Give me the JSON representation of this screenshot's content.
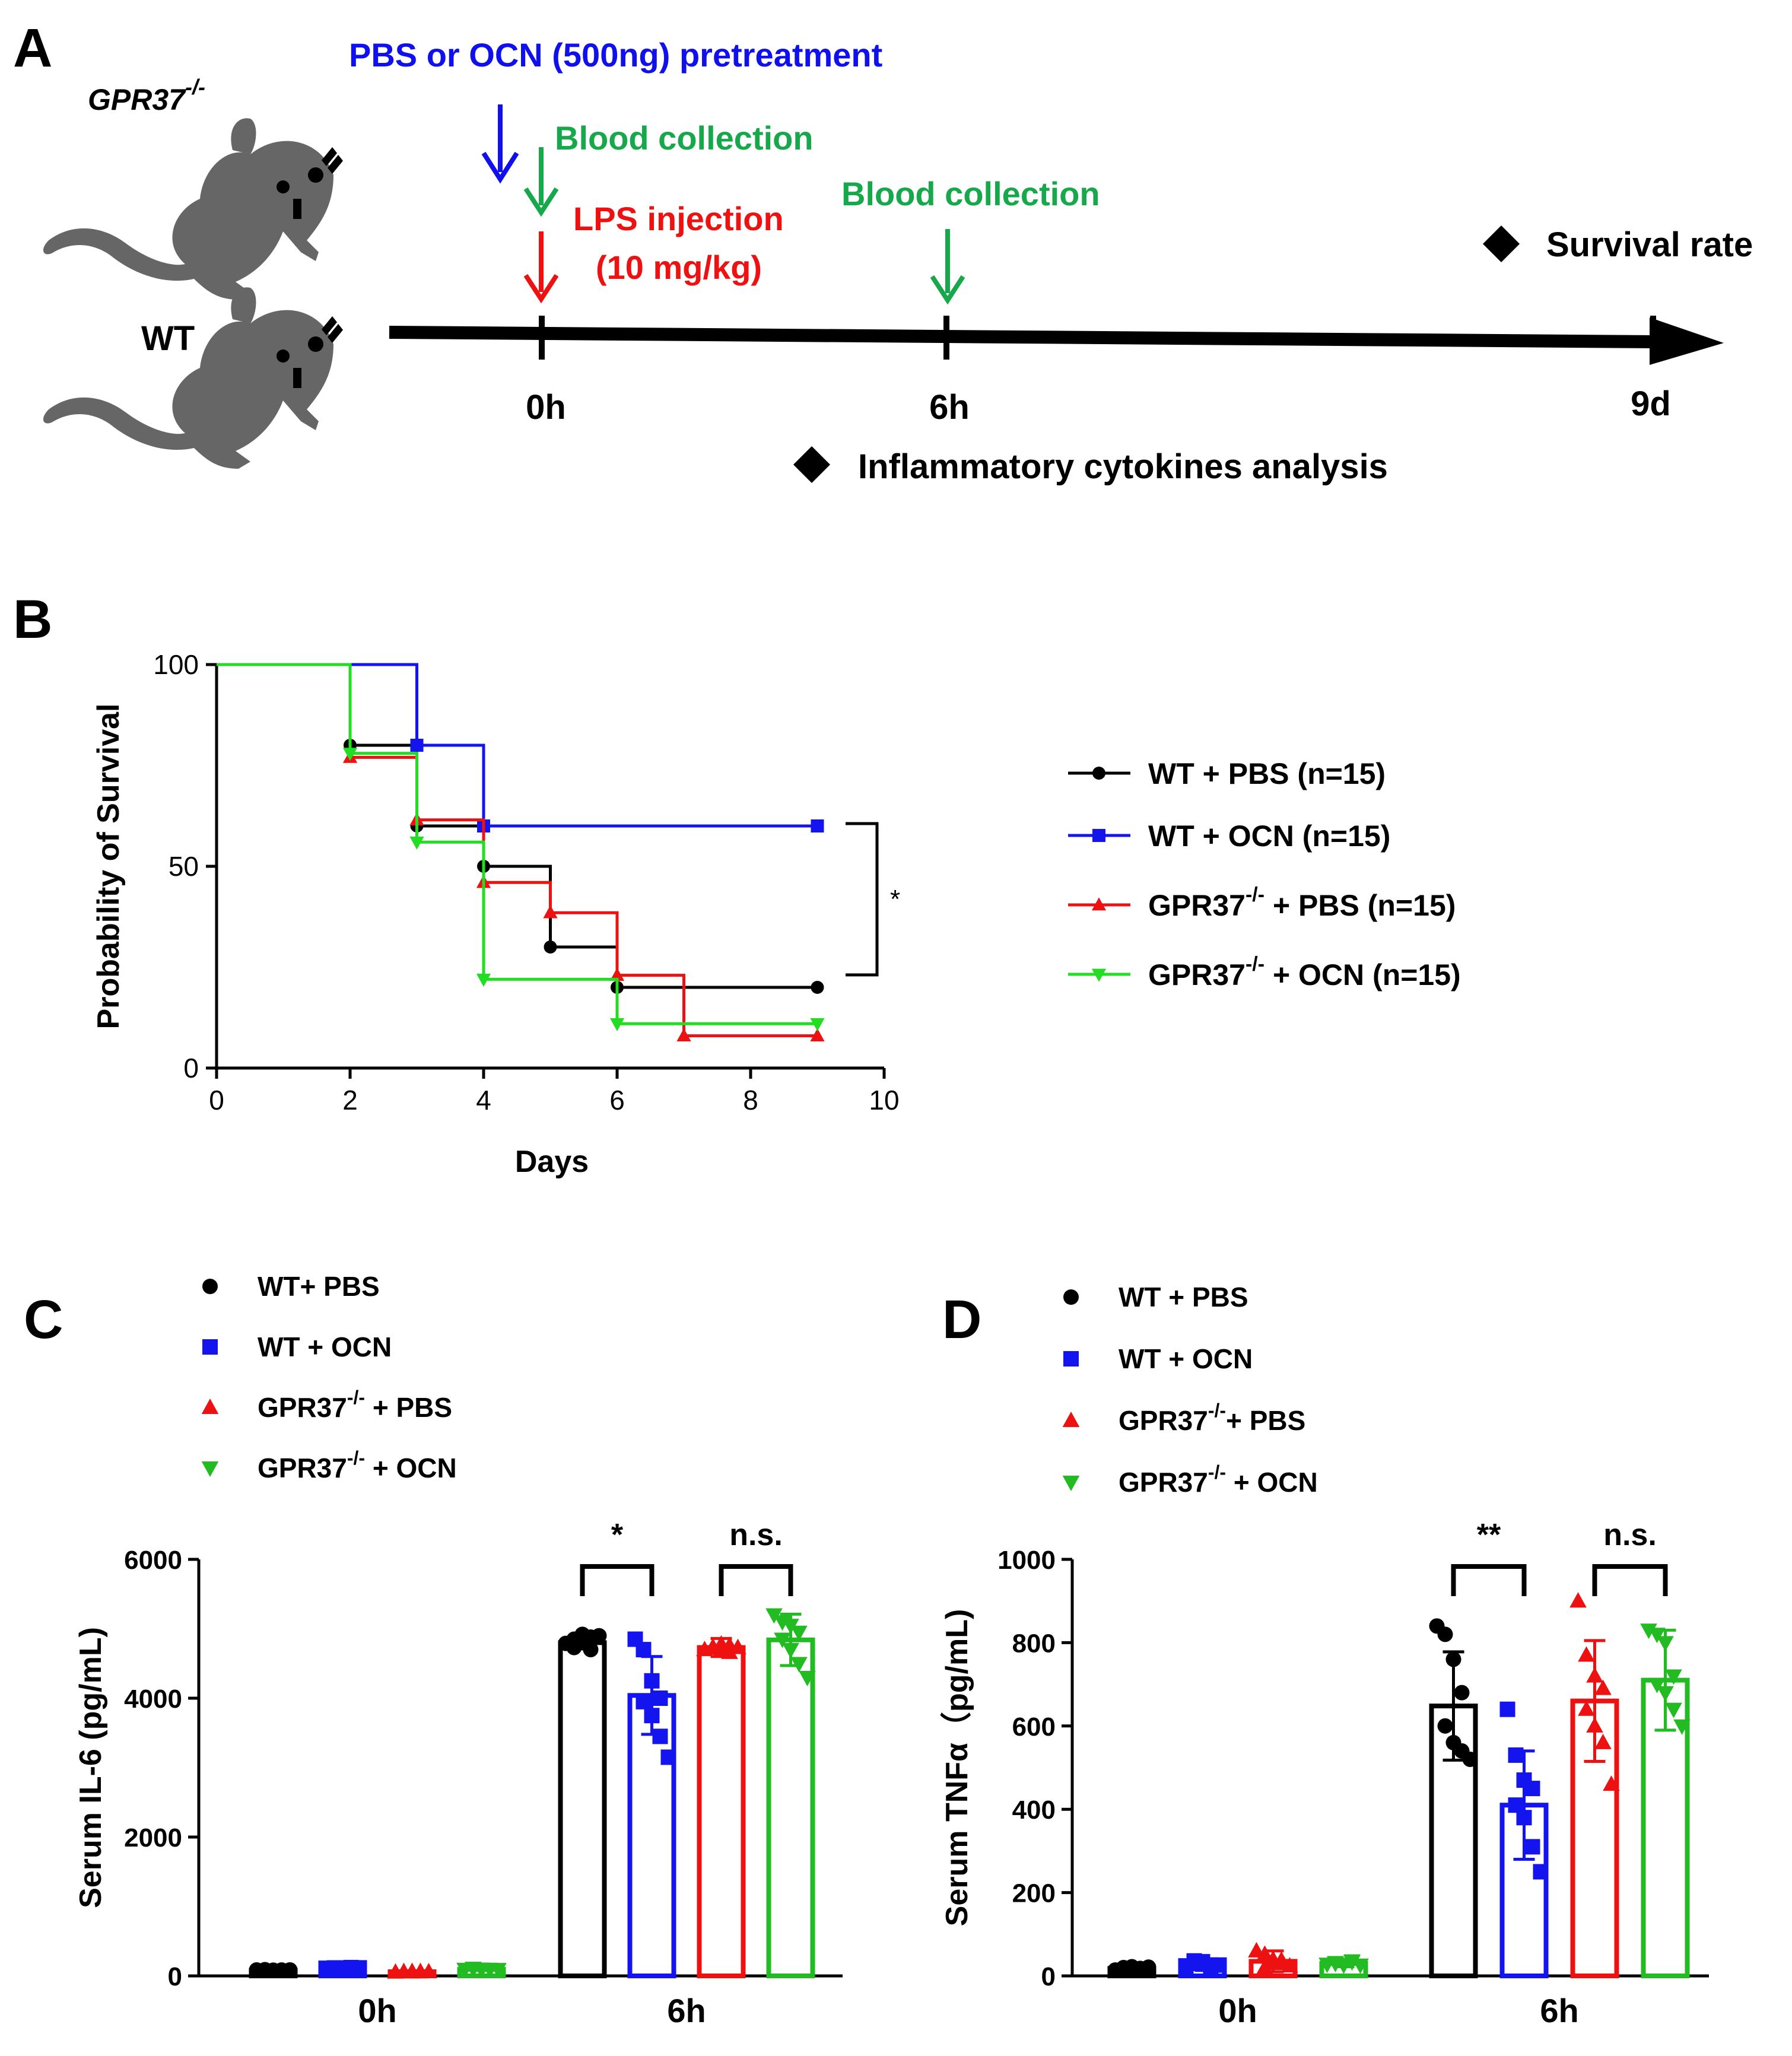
{
  "figure": {
    "panel_labels": {
      "a": "A",
      "b": "B",
      "c": "C",
      "d": "D"
    },
    "schematic": {
      "gpr37_label": "GPR37",
      "gpr37_sup": "-/-",
      "wt_label": "WT",
      "pretreatment": "PBS or OCN (500ng) pretreatment",
      "blood_collection_1": "Blood collection",
      "lps_line1": "LPS injection",
      "lps_line2": "(10 mg/kg)",
      "blood_collection_2": "Blood collection",
      "survival_rate": "Survival rate",
      "inflammatory": "Inflammatory cytokines  analysis",
      "timepoints": [
        "0h",
        "6h",
        "9d"
      ],
      "colors": {
        "pretreatment": "#1010ee",
        "blood": "#16a84a",
        "lps": "#ee1111",
        "axis": "#000000"
      },
      "icons": [
        "mouse-icon",
        "arrow-down-icon",
        "diamond-icon"
      ]
    }
  },
  "chart_data": [
    {
      "panel": "B",
      "type": "line",
      "subtype": "kaplan-meier",
      "xlabel": "Days",
      "ylabel": "Probability of Survival",
      "xlim": [
        0,
        10
      ],
      "ylim": [
        0,
        100
      ],
      "xticks": [
        0,
        2,
        4,
        6,
        8,
        10
      ],
      "yticks": [
        0,
        50,
        100
      ],
      "annotation": "*",
      "legend_position": "right",
      "series": [
        {
          "name": "WT + PBS (n=15)",
          "marker": "circle",
          "color": "#000000",
          "steps": [
            [
              0,
              100
            ],
            [
              2,
              80
            ],
            [
              3,
              60
            ],
            [
              4,
              50
            ],
            [
              5,
              30
            ],
            [
              6,
              20
            ],
            [
              9,
              20
            ]
          ]
        },
        {
          "name": "WT + OCN (n=15)",
          "marker": "square",
          "color": "#1414ee",
          "steps": [
            [
              0,
              100
            ],
            [
              3,
              80
            ],
            [
              4,
              60
            ],
            [
              9,
              60
            ]
          ]
        },
        {
          "name": "GPR37 + PBS (n=15)",
          "name_sup": "-/-",
          "marker": "triangle-up",
          "color": "#ee1111",
          "steps": [
            [
              0,
              100
            ],
            [
              2,
              77
            ],
            [
              3,
              61.5
            ],
            [
              4,
              46
            ],
            [
              5,
              38.5
            ],
            [
              6,
              23
            ],
            [
              7,
              8
            ],
            [
              9,
              8
            ]
          ]
        },
        {
          "name": "GPR37 + OCN (n=15)",
          "name_sup": "-/-",
          "marker": "triangle-down",
          "color": "#22dd22",
          "steps": [
            [
              0,
              100
            ],
            [
              2,
              78
            ],
            [
              3,
              56
            ],
            [
              4,
              22
            ],
            [
              6,
              11
            ],
            [
              9,
              11
            ]
          ]
        }
      ]
    },
    {
      "panel": "C",
      "type": "bar",
      "ylabel": "Serum IL-6 (pg/mL)",
      "ylim": [
        0,
        6000
      ],
      "yticks": [
        0,
        2000,
        4000,
        6000
      ],
      "categories": [
        "0h",
        "6h"
      ],
      "legend_position": "top-left",
      "legend": [
        {
          "label": "WT+ PBS",
          "sup": "",
          "marker": "circle",
          "color": "#000000"
        },
        {
          "label": "WT + OCN",
          "sup": "",
          "marker": "square",
          "color": "#1414ee"
        },
        {
          "label": "GPR37",
          "sup": "-/-",
          "label_after": " + PBS",
          "marker": "triangle-up",
          "color": "#ee1111"
        },
        {
          "label": "GPR37",
          "sup": "-/-",
          "label_after": " + OCN",
          "marker": "triangle-down",
          "color": "#22bb22"
        }
      ],
      "series": [
        {
          "name": "WT+ PBS",
          "values": [
            80,
            4800
          ],
          "sd": [
            15,
            90
          ],
          "points": [
            [
              85,
              88,
              82,
              78,
              90,
              80,
              84,
              86
            ],
            [
              4790,
              4850,
              4920,
              4880,
              4730,
              4800,
              4700,
              4900
            ]
          ]
        },
        {
          "name": "WT + OCN",
          "values": [
            110,
            4040
          ],
          "sd": [
            10,
            560
          ],
          "points": [
            [
              110,
              115,
              112,
              118,
              108,
              113,
              120,
              116
            ],
            [
              4850,
              4700,
              4250,
              4000,
              3950,
              3750,
              3450,
              3150
            ]
          ]
        },
        {
          "name": "GPR37 + PBS",
          "values": [
            60,
            4730
          ],
          "sd": [
            10,
            130
          ],
          "points": [
            [
              55,
              60,
              65,
              58,
              62,
              57,
              63,
              60
            ],
            [
              4700,
              4720,
              4780,
              4760,
              4740,
              4700,
              4660,
              4730
            ]
          ]
        },
        {
          "name": "GPR37 + OCN",
          "values": [
            95,
            4840
          ],
          "sd": [
            15,
            370
          ],
          "points": [
            [
              95,
              100,
              88,
              92,
              110,
              98,
              96,
              93
            ],
            [
              5200,
              5100,
              5050,
              4950,
              4850,
              4700,
              4500,
              4300
            ]
          ]
        }
      ],
      "annotations": [
        {
          "text": "*",
          "pair": [
            0,
            1
          ],
          "category": "6h"
        },
        {
          "text": "n.s.",
          "pair": [
            2,
            3
          ],
          "category": "6h"
        }
      ]
    },
    {
      "panel": "D",
      "type": "bar",
      "ylabel": "Serum TNFα（pg/mL)",
      "ylim": [
        0,
        1000
      ],
      "yticks": [
        0,
        200,
        400,
        600,
        800,
        1000
      ],
      "categories": [
        "0h",
        "6h"
      ],
      "legend_position": "top-left",
      "legend": [
        {
          "label": "WT + PBS",
          "sup": "",
          "marker": "circle",
          "color": "#000000"
        },
        {
          "label": "WT + OCN",
          "sup": "",
          "marker": "square",
          "color": "#1414ee"
        },
        {
          "label": "GPR37",
          "sup": "-/-",
          "label_after": "+ PBS",
          "marker": "triangle-up",
          "color": "#ee1111"
        },
        {
          "label": "GPR37",
          "sup": "-/-",
          "label_after": " + OCN",
          "marker": "triangle-down",
          "color": "#22bb22"
        }
      ],
      "series": [
        {
          "name": "WT + PBS",
          "values": [
            18,
            648
          ],
          "sd": [
            4,
            130
          ],
          "points": [
            [
              14,
              16,
              22,
              18,
              20,
              15,
              17,
              21
            ],
            [
              840,
              820,
              760,
              680,
              600,
              560,
              540,
              520
            ]
          ]
        },
        {
          "name": "WT + OCN",
          "values": [
            28,
            410
          ],
          "sd": [
            8,
            130
          ],
          "points": [
            [
              24,
              30,
              34,
              20,
              36,
              28,
              26,
              26
            ],
            [
              640,
              530,
              470,
              450,
              410,
              380,
              310,
              250
            ]
          ]
        },
        {
          "name": "GPR37 + PBS",
          "values": [
            35,
            660
          ],
          "sd": [
            25,
            145
          ],
          "points": [
            [
              60,
              52,
              40,
              30,
              20,
              30,
              38,
              24
            ],
            [
              900,
              770,
              720,
              690,
              640,
              600,
              560,
              460
            ]
          ]
        },
        {
          "name": "GPR37 + OCN",
          "values": [
            30,
            710
          ],
          "sd": [
            8,
            120
          ],
          "points": [
            [
              28,
              32,
              26,
              34,
              30,
              28,
              36,
              26
            ],
            [
              830,
              820,
              800,
              720,
              700,
              680,
              640,
              600
            ]
          ]
        }
      ],
      "annotations": [
        {
          "text": "**",
          "pair": [
            0,
            1
          ],
          "category": "6h"
        },
        {
          "text": "n.s.",
          "pair": [
            2,
            3
          ],
          "category": "6h"
        }
      ]
    }
  ]
}
